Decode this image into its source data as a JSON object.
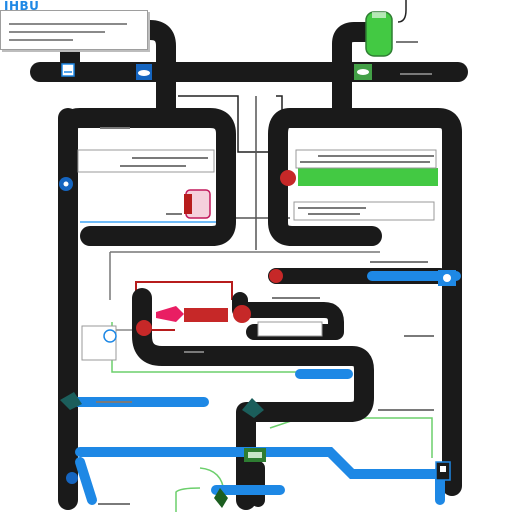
{
  "header": {
    "title": "IHBU"
  },
  "colors": {
    "track_black": "#1a1a1a",
    "flow_blue": "#1e88e5",
    "flow_green": "#43c943",
    "flow_red": "#b71c1c",
    "accent_pink": "#e91e63",
    "wire_gray": "#9e9e9e",
    "background": "#ffffff"
  },
  "icons": [
    "display-icon",
    "cloud-icon",
    "leaf-icon",
    "gear-icon",
    "valve-icon",
    "sensor-icon",
    "drop-icon",
    "lamp-icon"
  ]
}
